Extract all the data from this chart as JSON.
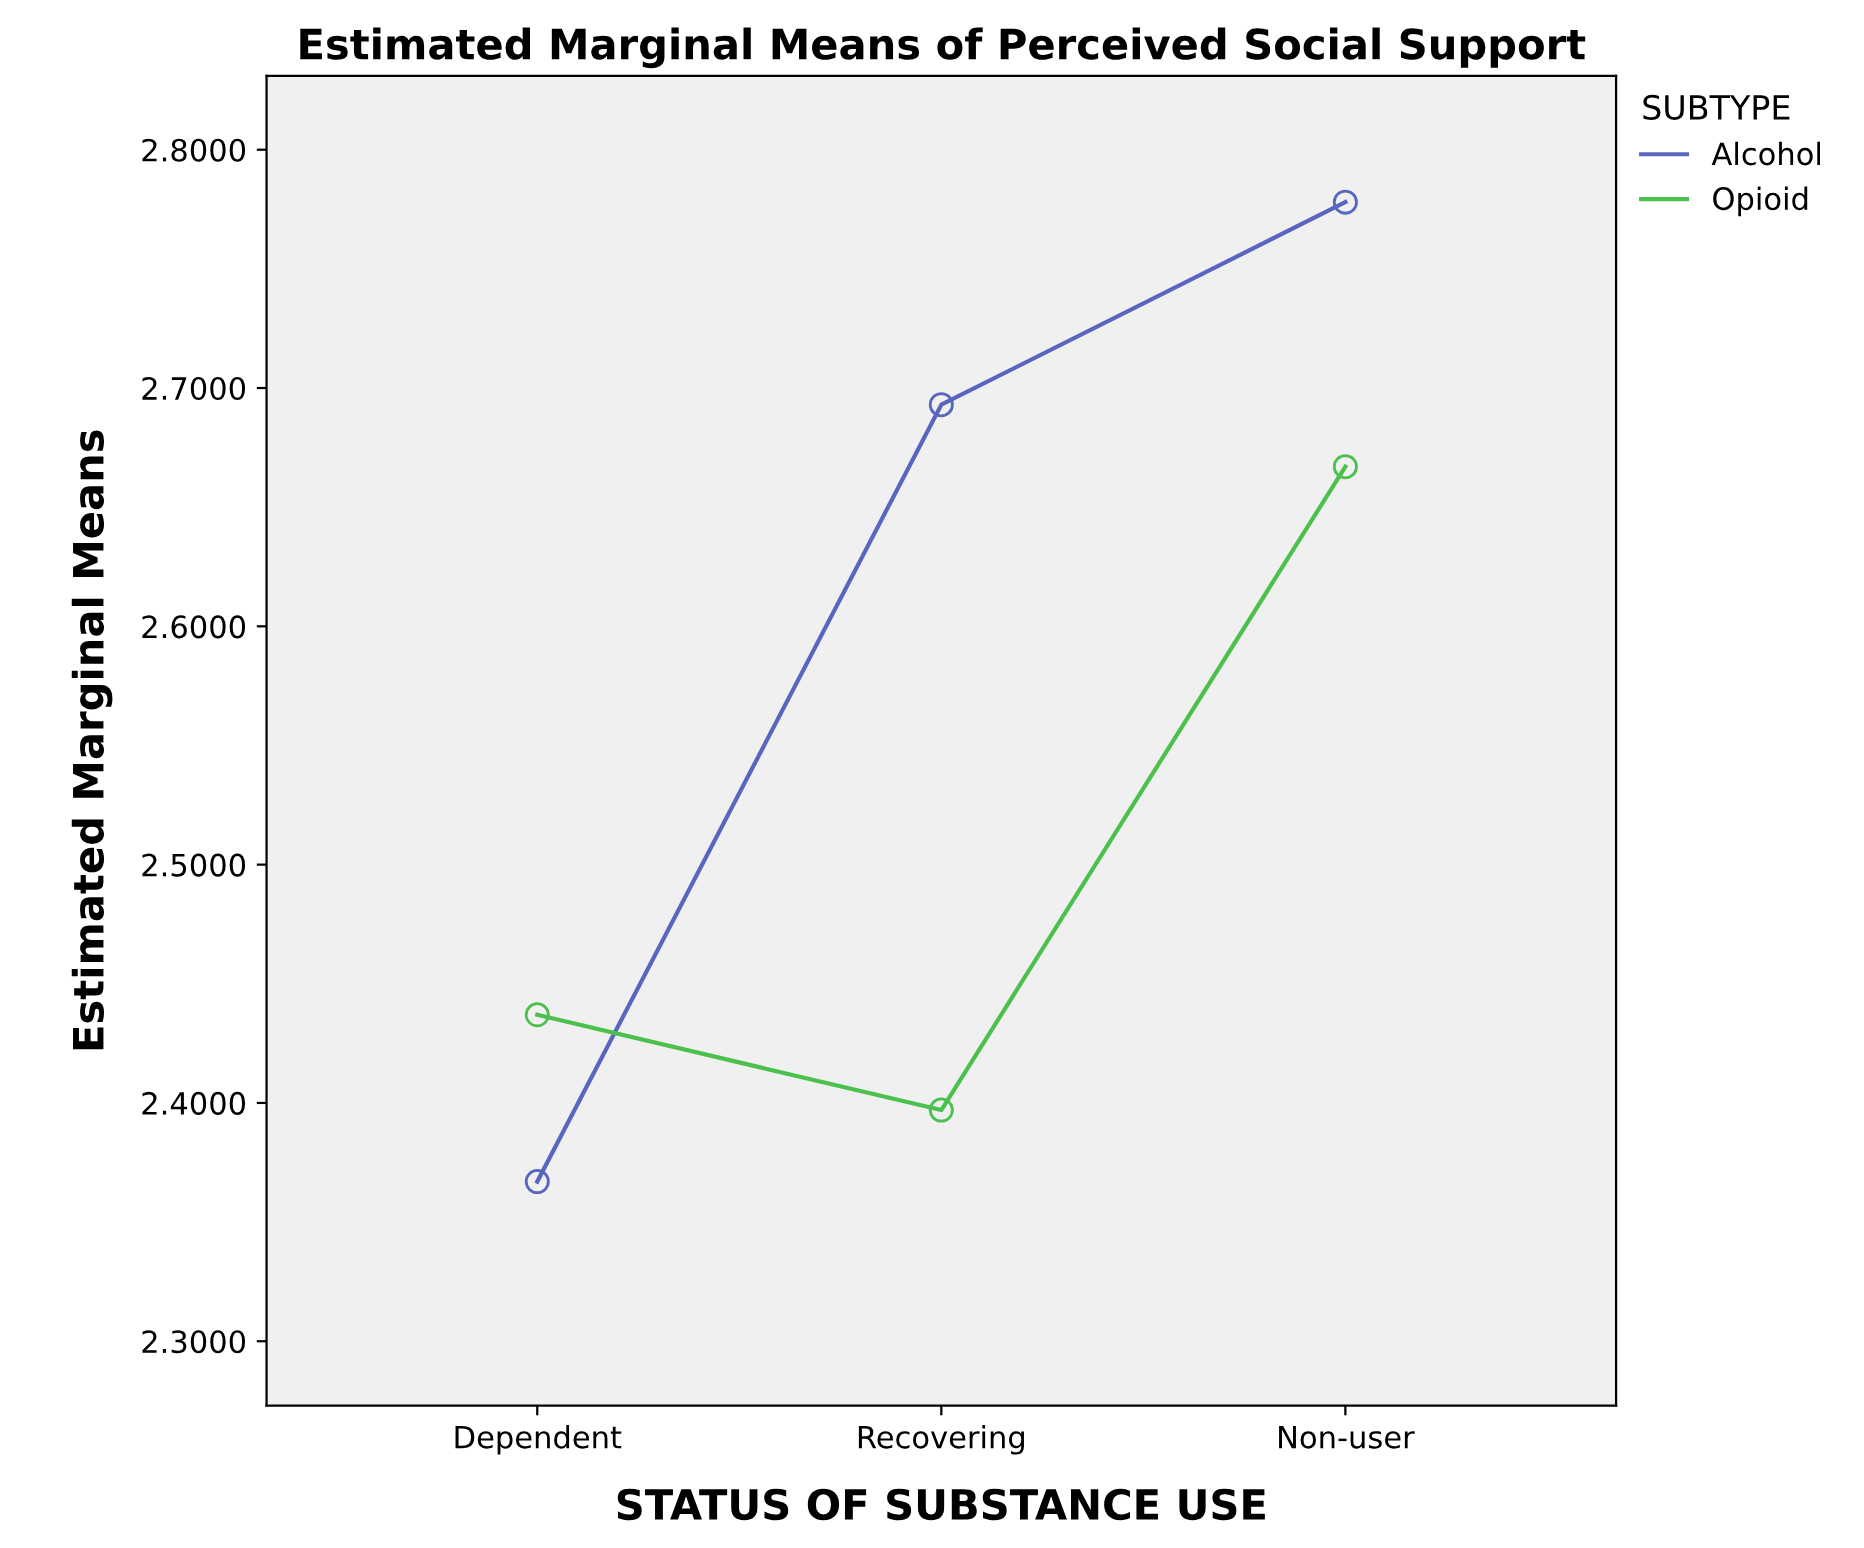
{
  "chart_data": {
    "type": "line",
    "title": "Estimated Marginal Means of Perceived Social Support",
    "xlabel": "STATUS OF SUBSTANCE USE",
    "ylabel": "Estimated Marginal Means",
    "legend_title": "SUBTYPE",
    "categories": [
      "Dependent",
      "Recovering",
      "Non-user"
    ],
    "series": [
      {
        "name": "Alcohol",
        "color": "#5966c0",
        "values": [
          2.367,
          2.693,
          2.778
        ]
      },
      {
        "name": "Opioid",
        "color": "#4cc04c",
        "values": [
          2.437,
          2.397,
          2.667
        ]
      }
    ],
    "ylim": [
      2.273,
      2.831
    ],
    "yticks": [
      {
        "value": 2.3,
        "label": "2.3000"
      },
      {
        "value": 2.4,
        "label": "2.4000"
      },
      {
        "value": 2.5,
        "label": "2.5000"
      },
      {
        "value": 2.6,
        "label": "2.6000"
      },
      {
        "value": 2.7,
        "label": "2.7000"
      },
      {
        "value": 2.8,
        "label": "2.8000"
      }
    ],
    "grid": false,
    "legend": "top right",
    "marker": "circle",
    "line_style": "solid"
  }
}
